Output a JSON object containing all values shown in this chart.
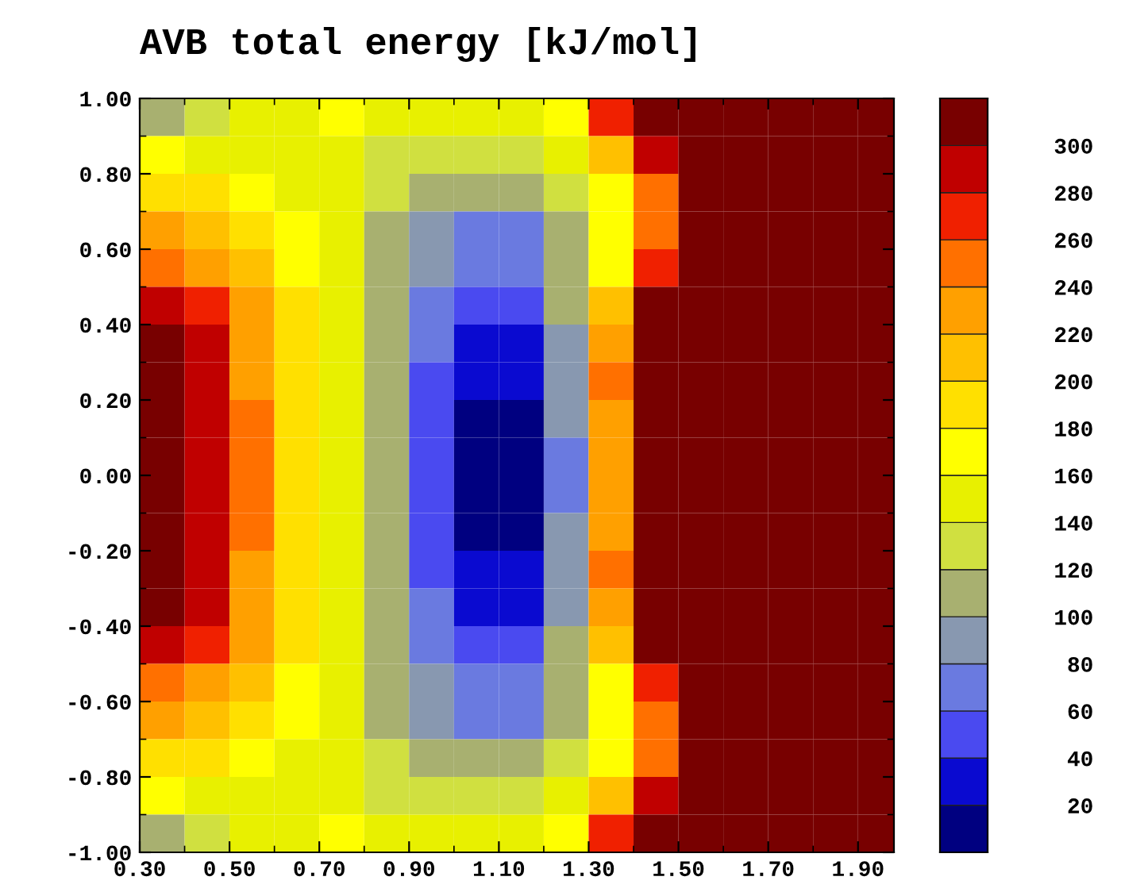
{
  "chart_data": {
    "type": "heatmap",
    "title": "AVB total energy [kJ/mol]",
    "x": [
      0.35,
      0.45,
      0.55,
      0.65,
      0.75,
      0.85,
      0.95,
      1.05,
      1.15,
      1.25,
      1.35,
      1.45,
      1.55,
      1.65,
      1.75,
      1.85,
      1.95
    ],
    "y": [
      0.95,
      0.85,
      0.75,
      0.65,
      0.55,
      0.45,
      0.35,
      0.25,
      0.15,
      0.05,
      -0.05,
      -0.15,
      -0.25,
      -0.35,
      -0.45,
      -0.55,
      -0.65,
      -0.75,
      -0.85,
      -0.95
    ],
    "cells": [
      [
        110,
        130,
        140,
        150,
        165,
        155,
        145,
        140,
        145,
        170,
        260,
        315,
        315,
        315,
        315,
        315,
        315
      ],
      [
        160,
        155,
        155,
        150,
        140,
        132,
        125,
        120,
        122,
        140,
        200,
        280,
        315,
        315,
        315,
        315,
        315
      ],
      [
        185,
        180,
        170,
        158,
        140,
        122,
        110,
        105,
        105,
        125,
        170,
        240,
        300,
        315,
        315,
        315,
        315
      ],
      [
        225,
        215,
        190,
        168,
        142,
        118,
        95,
        75,
        75,
        115,
        165,
        250,
        310,
        315,
        315,
        315,
        315
      ],
      [
        250,
        235,
        205,
        175,
        145,
        115,
        85,
        60,
        60,
        108,
        175,
        270,
        315,
        315,
        315,
        315,
        315
      ],
      [
        290,
        265,
        220,
        180,
        145,
        110,
        75,
        45,
        45,
        100,
        205,
        300,
        315,
        315,
        315,
        315,
        315
      ],
      [
        305,
        280,
        235,
        188,
        148,
        108,
        65,
        32,
        32,
        92,
        225,
        310,
        315,
        315,
        315,
        315,
        315
      ],
      [
        312,
        285,
        238,
        190,
        150,
        108,
        58,
        22,
        22,
        85,
        240,
        315,
        315,
        315,
        315,
        315,
        315
      ],
      [
        315,
        285,
        240,
        190,
        150,
        110,
        55,
        15,
        15,
        80,
        235,
        315,
        315,
        315,
        315,
        315,
        315
      ],
      [
        315,
        285,
        240,
        190,
        150,
        110,
        52,
        10,
        12,
        75,
        230,
        315,
        315,
        315,
        315,
        315,
        315
      ],
      [
        315,
        285,
        240,
        190,
        150,
        110,
        52,
        10,
        12,
        75,
        230,
        315,
        315,
        315,
        315,
        315,
        315
      ],
      [
        315,
        285,
        240,
        190,
        150,
        110,
        55,
        15,
        15,
        80,
        235,
        315,
        315,
        315,
        315,
        315,
        315
      ],
      [
        312,
        285,
        238,
        190,
        150,
        108,
        58,
        22,
        22,
        85,
        240,
        315,
        315,
        315,
        315,
        315,
        315
      ],
      [
        305,
        280,
        235,
        188,
        148,
        108,
        65,
        32,
        32,
        92,
        225,
        310,
        315,
        315,
        315,
        315,
        315
      ],
      [
        290,
        265,
        220,
        180,
        145,
        110,
        75,
        45,
        45,
        100,
        205,
        300,
        315,
        315,
        315,
        315,
        315
      ],
      [
        250,
        235,
        205,
        175,
        145,
        115,
        85,
        60,
        60,
        108,
        175,
        270,
        315,
        315,
        315,
        315,
        315
      ],
      [
        225,
        215,
        190,
        168,
        142,
        118,
        95,
        75,
        75,
        115,
        165,
        250,
        310,
        315,
        315,
        315,
        315
      ],
      [
        185,
        180,
        170,
        158,
        140,
        122,
        110,
        105,
        105,
        125,
        170,
        240,
        300,
        315,
        315,
        315,
        315
      ],
      [
        160,
        155,
        155,
        150,
        140,
        132,
        125,
        120,
        122,
        140,
        200,
        280,
        315,
        315,
        315,
        315,
        315
      ],
      [
        110,
        130,
        140,
        150,
        165,
        155,
        145,
        140,
        145,
        170,
        260,
        315,
        315,
        315,
        315,
        315,
        315
      ]
    ],
    "colors": [
      "#000080",
      "#0a0ad0",
      "#4a4af0",
      "#6a7ae0",
      "#8898b0",
      "#a8b070",
      "#d0e040",
      "#e8f000",
      "#ffff00",
      "#ffe000",
      "#ffc000",
      "#ffa000",
      "#ff7000",
      "#f02000",
      "#c00000",
      "#780000"
    ],
    "clim": [
      0,
      320
    ],
    "cticks": [
      20,
      40,
      60,
      80,
      100,
      120,
      140,
      160,
      180,
      200,
      220,
      240,
      260,
      280,
      300
    ],
    "xlim": [
      0.3,
      1.98
    ],
    "ylim": [
      -1.0,
      1.0
    ],
    "xticks": [
      {
        "value": 0.3,
        "label": "0.30"
      },
      {
        "value": 0.5,
        "label": "0.50"
      },
      {
        "value": 0.7,
        "label": "0.70"
      },
      {
        "value": 0.9,
        "label": "0.90"
      },
      {
        "value": 1.1,
        "label": "1.10"
      },
      {
        "value": 1.3,
        "label": "1.30"
      },
      {
        "value": 1.5,
        "label": "1.50"
      },
      {
        "value": 1.7,
        "label": "1.70"
      },
      {
        "value": 1.9,
        "label": "1.90"
      }
    ],
    "yticks": [
      {
        "value": -1.0,
        "label": "-1.00"
      },
      {
        "value": -0.8,
        "label": "-0.80"
      },
      {
        "value": -0.6,
        "label": "-0.60"
      },
      {
        "value": -0.4,
        "label": "-0.40"
      },
      {
        "value": -0.2,
        "label": "-0.20"
      },
      {
        "value": 0.0,
        "label": "0.00"
      },
      {
        "value": 0.2,
        "label": "0.20"
      },
      {
        "value": 0.4,
        "label": "0.40"
      },
      {
        "value": 0.6,
        "label": "0.60"
      },
      {
        "value": 0.8,
        "label": "0.80"
      },
      {
        "value": 1.0,
        "label": "1.00"
      }
    ]
  }
}
